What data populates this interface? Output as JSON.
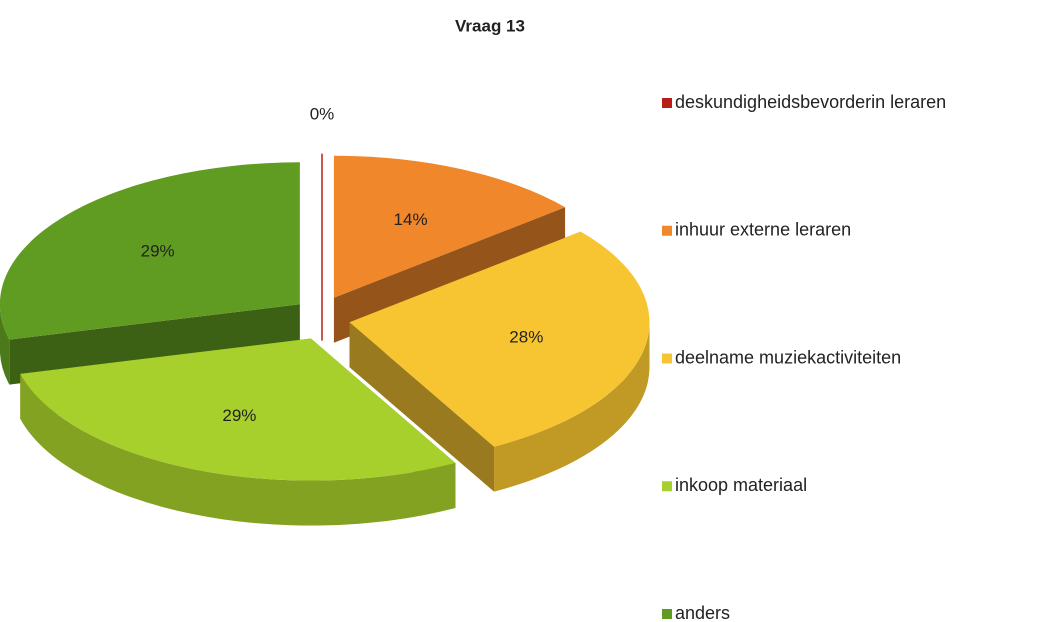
{
  "chart_data": {
    "type": "pie",
    "title": "Vraag 13",
    "categories": [
      "deskundigheidsbevorderin leraren",
      "inhuur externe leraren",
      "deelname muziekactiviteiten",
      "inkoop materiaal",
      "anders"
    ],
    "values": [
      0,
      14,
      28,
      29,
      29
    ],
    "value_labels": [
      "0%",
      "14%",
      "28%",
      "29%",
      "29%"
    ],
    "colors": [
      "#b81d18",
      "#f0872a",
      "#f7c531",
      "#a8d02c",
      "#619c22"
    ],
    "legend": "right"
  }
}
